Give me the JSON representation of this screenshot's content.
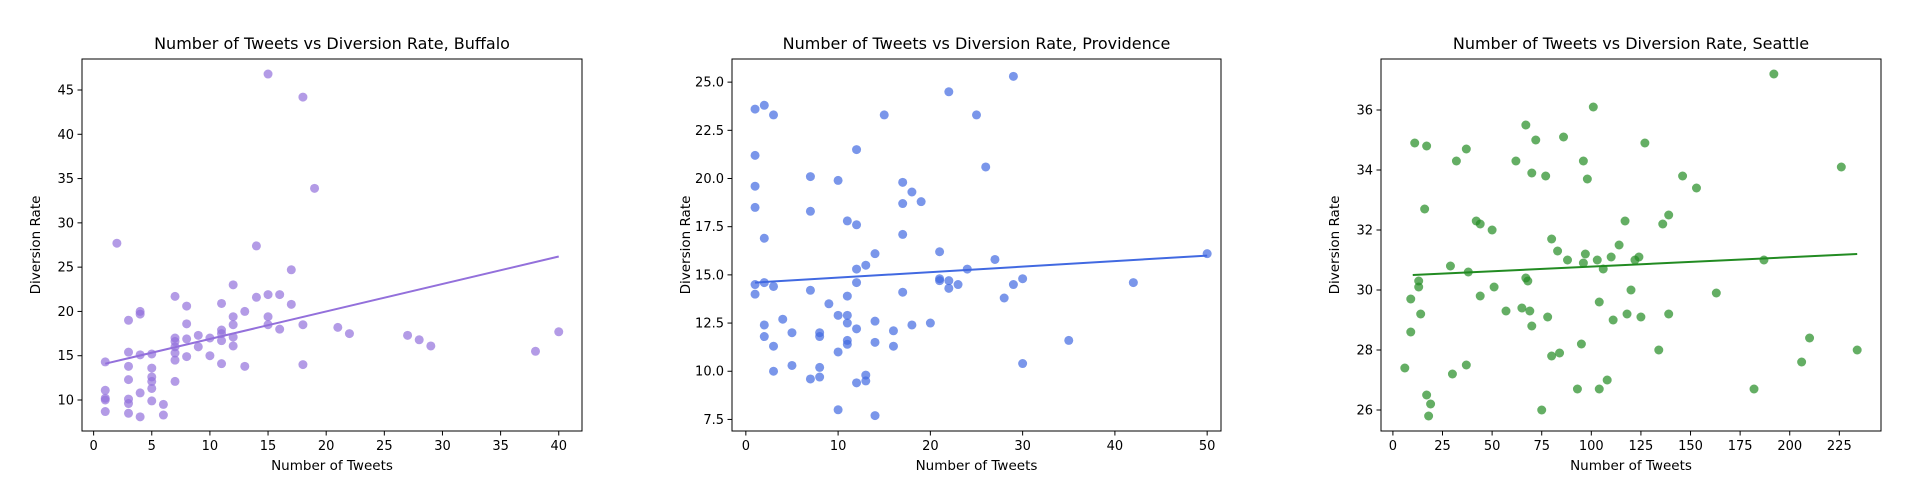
{
  "chart_data": [
    {
      "type": "scatter",
      "title": "Number of Tweets vs Diversion Rate, Buffalo",
      "xlabel": "Number of Tweets",
      "ylabel": "Diversion Rate",
      "xlim": [
        -1,
        42
      ],
      "ylim": [
        6.5,
        48.5
      ],
      "xticks": [
        0,
        5,
        10,
        15,
        20,
        25,
        30,
        35,
        40
      ],
      "yticks": [
        10,
        15,
        20,
        25,
        30,
        35,
        40,
        45
      ],
      "color": "#9370DB",
      "fit": {
        "x": [
          1,
          40
        ],
        "y": [
          14.1,
          26.2
        ]
      },
      "series": [
        {
          "points": [
            [
              1,
              14.3
            ],
            [
              1,
              11.1
            ],
            [
              1,
              10.2
            ],
            [
              1,
              10.0
            ],
            [
              1,
              8.7
            ],
            [
              2,
              27.7
            ],
            [
              3,
              19.0
            ],
            [
              3,
              15.4
            ],
            [
              3,
              13.8
            ],
            [
              3,
              12.3
            ],
            [
              3,
              10.1
            ],
            [
              3,
              9.6
            ],
            [
              3,
              8.5
            ],
            [
              4,
              20.0
            ],
            [
              4,
              19.7
            ],
            [
              4,
              15.1
            ],
            [
              4,
              10.8
            ],
            [
              4,
              8.1
            ],
            [
              5,
              15.2
            ],
            [
              5,
              13.6
            ],
            [
              5,
              12.6
            ],
            [
              5,
              12.1
            ],
            [
              5,
              11.3
            ],
            [
              5,
              9.9
            ],
            [
              6,
              9.5
            ],
            [
              6,
              8.3
            ],
            [
              7,
              21.7
            ],
            [
              7,
              17.0
            ],
            [
              7,
              16.6
            ],
            [
              7,
              16.0
            ],
            [
              7,
              15.3
            ],
            [
              7,
              14.5
            ],
            [
              7,
              12.1
            ],
            [
              8,
              20.6
            ],
            [
              8,
              18.6
            ],
            [
              8,
              16.9
            ],
            [
              8,
              14.9
            ],
            [
              9,
              17.3
            ],
            [
              9,
              16.0
            ],
            [
              10,
              17.0
            ],
            [
              10,
              15.0
            ],
            [
              11,
              20.9
            ],
            [
              11,
              17.9
            ],
            [
              11,
              17.5
            ],
            [
              11,
              16.7
            ],
            [
              11,
              14.1
            ],
            [
              12,
              23.0
            ],
            [
              12,
              19.4
            ],
            [
              12,
              18.5
            ],
            [
              12,
              17.1
            ],
            [
              12,
              16.1
            ],
            [
              13,
              20.0
            ],
            [
              13,
              13.8
            ],
            [
              14,
              27.4
            ],
            [
              14,
              21.6
            ],
            [
              15,
              46.8
            ],
            [
              15,
              21.9
            ],
            [
              15,
              19.4
            ],
            [
              15,
              18.5
            ],
            [
              16,
              21.9
            ],
            [
              16,
              18.0
            ],
            [
              17,
              24.7
            ],
            [
              17,
              20.8
            ],
            [
              18,
              44.2
            ],
            [
              18,
              18.5
            ],
            [
              18,
              14.0
            ],
            [
              19,
              33.9
            ],
            [
              21,
              18.2
            ],
            [
              22,
              17.5
            ],
            [
              27,
              17.3
            ],
            [
              28,
              16.8
            ],
            [
              29,
              16.1
            ],
            [
              38,
              15.5
            ],
            [
              40,
              17.7
            ]
          ]
        }
      ]
    },
    {
      "type": "scatter",
      "title": "Number of Tweets vs Diversion Rate, Providence",
      "xlabel": "Number of Tweets",
      "ylabel": "Diversion Rate",
      "xlim": [
        -1.5,
        51.5
      ],
      "ylim": [
        6.9,
        26.2
      ],
      "xticks": [
        0,
        10,
        20,
        30,
        40,
        50
      ],
      "yticks": [
        7.5,
        10.0,
        12.5,
        15.0,
        17.5,
        20.0,
        22.5,
        25.0
      ],
      "color": "#4169E1",
      "fit": {
        "x": [
          1,
          50
        ],
        "y": [
          14.6,
          16.0
        ]
      },
      "series": [
        {
          "points": [
            [
              1,
              23.6
            ],
            [
              1,
              21.2
            ],
            [
              1,
              19.6
            ],
            [
              1,
              18.5
            ],
            [
              1,
              14.5
            ],
            [
              1,
              14.0
            ],
            [
              2,
              23.8
            ],
            [
              2,
              16.9
            ],
            [
              2,
              14.6
            ],
            [
              2,
              12.4
            ],
            [
              2,
              11.8
            ],
            [
              3,
              23.3
            ],
            [
              3,
              14.4
            ],
            [
              3,
              11.3
            ],
            [
              3,
              10.0
            ],
            [
              4,
              12.7
            ],
            [
              5,
              12.0
            ],
            [
              5,
              10.3
            ],
            [
              7,
              20.1
            ],
            [
              7,
              18.3
            ],
            [
              7,
              14.2
            ],
            [
              7,
              9.6
            ],
            [
              8,
              12.0
            ],
            [
              8,
              11.8
            ],
            [
              8,
              10.2
            ],
            [
              8,
              9.7
            ],
            [
              9,
              13.5
            ],
            [
              10,
              19.9
            ],
            [
              10,
              12.9
            ],
            [
              10,
              11.0
            ],
            [
              10,
              8.0
            ],
            [
              11,
              17.8
            ],
            [
              11,
              13.9
            ],
            [
              11,
              12.9
            ],
            [
              11,
              12.5
            ],
            [
              11,
              11.6
            ],
            [
              11,
              11.4
            ],
            [
              12,
              21.5
            ],
            [
              12,
              17.6
            ],
            [
              12,
              15.3
            ],
            [
              12,
              14.6
            ],
            [
              12,
              12.2
            ],
            [
              12,
              9.4
            ],
            [
              13,
              15.5
            ],
            [
              13,
              9.8
            ],
            [
              13,
              9.5
            ],
            [
              14,
              16.1
            ],
            [
              14,
              12.6
            ],
            [
              14,
              11.5
            ],
            [
              14,
              7.7
            ],
            [
              15,
              23.3
            ],
            [
              16,
              12.1
            ],
            [
              16,
              11.3
            ],
            [
              17,
              19.8
            ],
            [
              17,
              18.7
            ],
            [
              17,
              17.1
            ],
            [
              17,
              14.1
            ],
            [
              18,
              19.3
            ],
            [
              18,
              12.4
            ],
            [
              19,
              18.8
            ],
            [
              20,
              12.5
            ],
            [
              21,
              16.2
            ],
            [
              21,
              14.8
            ],
            [
              21,
              14.7
            ],
            [
              22,
              24.5
            ],
            [
              22,
              14.7
            ],
            [
              22,
              14.3
            ],
            [
              23,
              14.5
            ],
            [
              24,
              15.3
            ],
            [
              25,
              23.3
            ],
            [
              26,
              20.6
            ],
            [
              27,
              15.8
            ],
            [
              28,
              13.8
            ],
            [
              29,
              25.3
            ],
            [
              29,
              14.5
            ],
            [
              30,
              14.8
            ],
            [
              30,
              10.4
            ],
            [
              35,
              11.6
            ],
            [
              42,
              14.6
            ],
            [
              50,
              16.1
            ]
          ]
        }
      ]
    },
    {
      "type": "scatter",
      "title": "Number of Tweets vs Diversion Rate, Seattle",
      "xlabel": "Number of Tweets",
      "ylabel": "Diversion Rate",
      "xlim": [
        -6,
        246
      ],
      "ylim": [
        25.3,
        37.7
      ],
      "xticks": [
        0,
        25,
        50,
        75,
        100,
        125,
        150,
        175,
        200,
        225
      ],
      "yticks": [
        26,
        28,
        30,
        32,
        34,
        36
      ],
      "color": "#228B22",
      "fit": {
        "x": [
          10,
          234
        ],
        "y": [
          30.5,
          31.2
        ]
      },
      "series": [
        {
          "points": [
            [
              6,
              27.4
            ],
            [
              9,
              28.6
            ],
            [
              9,
              29.7
            ],
            [
              11,
              34.9
            ],
            [
              13,
              30.3
            ],
            [
              13,
              30.1
            ],
            [
              14,
              29.2
            ],
            [
              16,
              32.7
            ],
            [
              17,
              34.8
            ],
            [
              17,
              26.5
            ],
            [
              18,
              25.8
            ],
            [
              19,
              26.2
            ],
            [
              29,
              30.8
            ],
            [
              30,
              27.2
            ],
            [
              32,
              34.3
            ],
            [
              37,
              34.7
            ],
            [
              37,
              27.5
            ],
            [
              38,
              30.6
            ],
            [
              42,
              32.3
            ],
            [
              44,
              32.2
            ],
            [
              44,
              29.8
            ],
            [
              50,
              32.0
            ],
            [
              51,
              30.1
            ],
            [
              57,
              29.3
            ],
            [
              62,
              34.3
            ],
            [
              65,
              29.4
            ],
            [
              67,
              35.5
            ],
            [
              67,
              30.4
            ],
            [
              68,
              30.3
            ],
            [
              69,
              29.3
            ],
            [
              70,
              33.9
            ],
            [
              70,
              28.8
            ],
            [
              72,
              35.0
            ],
            [
              75,
              26.0
            ],
            [
              77,
              33.8
            ],
            [
              78,
              29.1
            ],
            [
              80,
              31.7
            ],
            [
              80,
              27.8
            ],
            [
              83,
              31.3
            ],
            [
              84,
              27.9
            ],
            [
              86,
              35.1
            ],
            [
              88,
              31.0
            ],
            [
              93,
              26.7
            ],
            [
              95,
              28.2
            ],
            [
              96,
              34.3
            ],
            [
              96,
              30.9
            ],
            [
              97,
              31.2
            ],
            [
              98,
              33.7
            ],
            [
              101,
              36.1
            ],
            [
              103,
              31.0
            ],
            [
              104,
              29.6
            ],
            [
              104,
              26.7
            ],
            [
              106,
              30.7
            ],
            [
              108,
              27.0
            ],
            [
              110,
              31.1
            ],
            [
              111,
              29.0
            ],
            [
              114,
              31.5
            ],
            [
              117,
              32.3
            ],
            [
              118,
              29.2
            ],
            [
              120,
              30.0
            ],
            [
              122,
              31.0
            ],
            [
              124,
              31.1
            ],
            [
              125,
              29.1
            ],
            [
              127,
              34.9
            ],
            [
              134,
              28.0
            ],
            [
              136,
              32.2
            ],
            [
              139,
              32.5
            ],
            [
              139,
              29.2
            ],
            [
              146,
              33.8
            ],
            [
              153,
              33.4
            ],
            [
              163,
              29.9
            ],
            [
              182,
              26.7
            ],
            [
              187,
              31.0
            ],
            [
              192,
              37.2
            ],
            [
              206,
              27.6
            ],
            [
              210,
              28.4
            ],
            [
              226,
              34.1
            ],
            [
              234,
              28.0
            ]
          ]
        }
      ]
    }
  ]
}
